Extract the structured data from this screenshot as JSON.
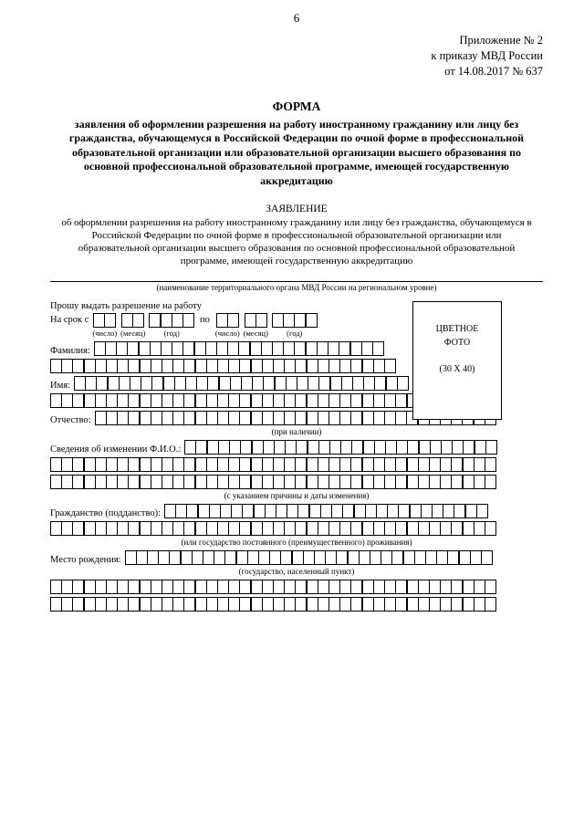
{
  "page_number": "6",
  "appendix": {
    "line1": "Приложение № 2",
    "line2": "к приказу МВД России",
    "line3": "от 14.08.2017 № 637"
  },
  "form_title": "ФОРМА",
  "form_subtitle": "заявления об оформлении разрешения на работу иностранному гражданину или лицу без гражданства, обучающемуся в Российской Федерации по очной форме в профессиональной образовательной организации или образовательной организации высшего образования по основной профессиональной образовательной программе, имеющей государственную аккредитацию",
  "application_title": "ЗАЯВЛЕНИЕ",
  "application_text": "об оформлении разрешения на работу иностранному гражданину или лицу без гражданства, обучающемуся в Российской Федерации по очной форме в профессиональной образовательной организации или образовательной организации высшего образования по основной профессиональной образовательной программе, имеющей государственную аккредитацию",
  "authority_caption": "(наименование территориального органа МВД России на региональном уровне)",
  "request_label": "Прошу выдать разрешение на работу",
  "period": {
    "from_label": "На срок с",
    "to_label": "по",
    "day_caption": "(число)",
    "month_caption": "(месяц)",
    "year_caption": "(год)"
  },
  "photo": {
    "line1": "ЦВЕТНОЕ",
    "line2": "ФОТО",
    "line3": "(30 X 40)"
  },
  "labels": {
    "surname": "Фамилия:",
    "name": "Имя:",
    "patronymic": "Отчество:",
    "patronymic_caption": "(при наличии)",
    "fio_change": "Сведения об изменении Ф.И.О.:",
    "fio_change_caption": "(с указанием причины и даты изменения)",
    "citizenship": "Гражданство (подданство):",
    "citizenship_caption": "(или государство постоянного (преимущественного) проживания)",
    "birthplace": "Место рождения:",
    "birthplace_caption": "(государство, населенный пункт)"
  },
  "style": {
    "row_cells_full": 40,
    "row_cells_short": 30,
    "cell_border": "#000000",
    "background": "#ffffff",
    "text_color": "#000000"
  }
}
